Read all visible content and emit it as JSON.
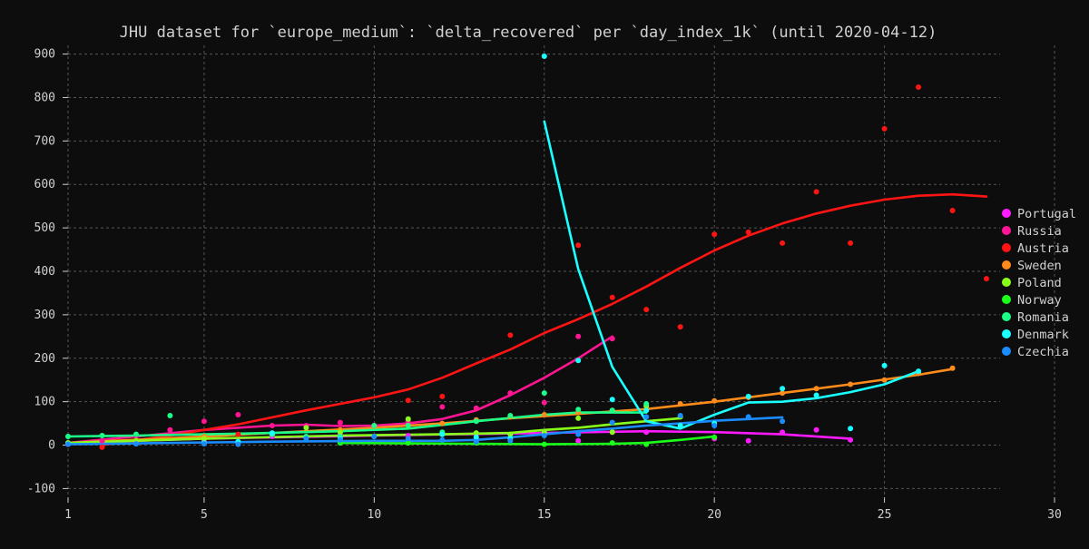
{
  "chart_data": {
    "type": "scatter",
    "title": "JHU dataset for `europe_medium`: `delta_recovered` per `day_index_1k` (until 2020-04-12)",
    "xlabel": "",
    "ylabel": "",
    "xlim": [
      1,
      30
    ],
    "ylim": [
      -120,
      920
    ],
    "x_ticks": [
      1,
      5,
      10,
      15,
      20,
      25,
      30
    ],
    "y_ticks": [
      -100,
      0,
      100,
      200,
      300,
      400,
      500,
      600,
      700,
      800,
      900
    ],
    "grid": true,
    "legend_position": "right",
    "series": [
      {
        "name": "Portugal",
        "color": "#ff1aff",
        "points": [
          [
            1,
            2
          ],
          [
            3,
            5
          ],
          [
            5,
            8
          ],
          [
            7,
            20
          ],
          [
            9,
            25
          ],
          [
            11,
            22
          ],
          [
            13,
            25
          ],
          [
            15,
            30
          ],
          [
            16,
            10
          ],
          [
            17,
            30
          ],
          [
            18,
            30
          ],
          [
            20,
            15
          ],
          [
            21,
            10
          ],
          [
            22,
            30
          ],
          [
            23,
            35
          ],
          [
            24,
            12
          ]
        ],
        "trend": [
          [
            1,
            5
          ],
          [
            5,
            15
          ],
          [
            10,
            22
          ],
          [
            15,
            28
          ],
          [
            18,
            32
          ],
          [
            20,
            30
          ],
          [
            22,
            25
          ],
          [
            24,
            15
          ]
        ]
      },
      {
        "name": "Russia",
        "color": "#ff1493",
        "points": [
          [
            1,
            5
          ],
          [
            2,
            10
          ],
          [
            3,
            20
          ],
          [
            4,
            35
          ],
          [
            5,
            55
          ],
          [
            6,
            70
          ],
          [
            7,
            45
          ],
          [
            8,
            45
          ],
          [
            9,
            52
          ],
          [
            10,
            45
          ],
          [
            11,
            55
          ],
          [
            12,
            88
          ],
          [
            13,
            85
          ],
          [
            14,
            120
          ],
          [
            15,
            98
          ],
          [
            16,
            250
          ],
          [
            17,
            245
          ]
        ],
        "trend": [
          [
            1,
            5
          ],
          [
            3,
            20
          ],
          [
            5,
            35
          ],
          [
            7,
            45
          ],
          [
            8,
            47
          ],
          [
            9,
            44
          ],
          [
            10,
            45
          ],
          [
            11,
            50
          ],
          [
            12,
            60
          ],
          [
            13,
            80
          ],
          [
            14,
            115
          ],
          [
            15,
            155
          ],
          [
            16,
            200
          ],
          [
            17,
            250
          ]
        ]
      },
      {
        "name": "Austria",
        "color": "#ff1414",
        "points": [
          [
            2,
            -5
          ],
          [
            6,
            25
          ],
          [
            11,
            103
          ],
          [
            12,
            112
          ],
          [
            14,
            253
          ],
          [
            16,
            460
          ],
          [
            17,
            340
          ],
          [
            18,
            312
          ],
          [
            19,
            272
          ],
          [
            20,
            485
          ],
          [
            21,
            490
          ],
          [
            22,
            465
          ],
          [
            23,
            583
          ],
          [
            24,
            465
          ],
          [
            25,
            728
          ],
          [
            26,
            824
          ],
          [
            27,
            540
          ],
          [
            28,
            383
          ]
        ],
        "trend": [
          [
            2,
            0
          ],
          [
            4,
            22
          ],
          [
            6,
            48
          ],
          [
            8,
            80
          ],
          [
            10,
            110
          ],
          [
            11,
            128
          ],
          [
            12,
            155
          ],
          [
            13,
            188
          ],
          [
            14,
            220
          ],
          [
            15,
            258
          ],
          [
            16,
            290
          ],
          [
            17,
            325
          ],
          [
            18,
            365
          ],
          [
            19,
            408
          ],
          [
            20,
            448
          ],
          [
            21,
            482
          ],
          [
            22,
            510
          ],
          [
            23,
            533
          ],
          [
            24,
            551
          ],
          [
            25,
            565
          ],
          [
            26,
            574
          ],
          [
            27,
            577
          ],
          [
            28,
            572
          ]
        ]
      },
      {
        "name": "Sweden",
        "color": "#ff8c1a",
        "points": [
          [
            1,
            5
          ],
          [
            3,
            10
          ],
          [
            5,
            20
          ],
          [
            7,
            25
          ],
          [
            9,
            35
          ],
          [
            11,
            45
          ],
          [
            12,
            50
          ],
          [
            13,
            58
          ],
          [
            14,
            65
          ],
          [
            15,
            70
          ],
          [
            16,
            75
          ],
          [
            17,
            80
          ],
          [
            18,
            90
          ],
          [
            19,
            95
          ],
          [
            20,
            102
          ],
          [
            21,
            110
          ],
          [
            22,
            120
          ],
          [
            23,
            130
          ],
          [
            24,
            140
          ],
          [
            25,
            150
          ],
          [
            26,
            165
          ],
          [
            27,
            177
          ]
        ],
        "trend": [
          [
            1,
            5
          ],
          [
            5,
            20
          ],
          [
            10,
            40
          ],
          [
            12,
            50
          ],
          [
            14,
            62
          ],
          [
            16,
            72
          ],
          [
            18,
            83
          ],
          [
            20,
            100
          ],
          [
            22,
            120
          ],
          [
            24,
            140
          ],
          [
            26,
            162
          ],
          [
            27,
            175
          ]
        ]
      },
      {
        "name": "Poland",
        "color": "#88ff1a",
        "points": [
          [
            1,
            5
          ],
          [
            3,
            10
          ],
          [
            5,
            15
          ],
          [
            7,
            25
          ],
          [
            8,
            40
          ],
          [
            9,
            30
          ],
          [
            11,
            60
          ],
          [
            12,
            25
          ],
          [
            13,
            28
          ],
          [
            14,
            25
          ],
          [
            15,
            30
          ],
          [
            16,
            62
          ],
          [
            17,
            30
          ],
          [
            18,
            90
          ],
          [
            19,
            65
          ]
        ],
        "trend": [
          [
            1,
            5
          ],
          [
            5,
            15
          ],
          [
            9,
            22
          ],
          [
            12,
            25
          ],
          [
            14,
            28
          ],
          [
            15,
            35
          ],
          [
            16,
            40
          ],
          [
            17,
            48
          ],
          [
            18,
            55
          ],
          [
            19,
            62
          ]
        ]
      },
      {
        "name": "Norway",
        "color": "#1aff1a",
        "points": [
          [
            9,
            5
          ],
          [
            11,
            5
          ],
          [
            13,
            5
          ],
          [
            15,
            2
          ],
          [
            17,
            5
          ],
          [
            18,
            2
          ],
          [
            20,
            18
          ]
        ],
        "trend": [
          [
            9,
            5
          ],
          [
            11,
            4
          ],
          [
            13,
            3
          ],
          [
            15,
            2
          ],
          [
            17,
            3
          ],
          [
            18,
            5
          ],
          [
            19,
            12
          ],
          [
            20,
            20
          ]
        ]
      },
      {
        "name": "Romania",
        "color": "#1aff88",
        "points": [
          [
            1,
            20
          ],
          [
            2,
            22
          ],
          [
            3,
            25
          ],
          [
            4,
            68
          ],
          [
            7,
            25
          ],
          [
            8,
            20
          ],
          [
            9,
            20
          ],
          [
            10,
            45
          ],
          [
            11,
            45
          ],
          [
            12,
            30
          ],
          [
            13,
            55
          ],
          [
            14,
            68
          ],
          [
            15,
            120
          ],
          [
            16,
            82
          ],
          [
            17,
            80
          ],
          [
            18,
            95
          ]
        ],
        "trend": [
          [
            1,
            20
          ],
          [
            3,
            22
          ],
          [
            5,
            25
          ],
          [
            7,
            28
          ],
          [
            9,
            32
          ],
          [
            11,
            38
          ],
          [
            13,
            55
          ],
          [
            15,
            70
          ],
          [
            16,
            75
          ],
          [
            17,
            75
          ],
          [
            18,
            75
          ]
        ]
      },
      {
        "name": "Denmark",
        "color": "#1affff",
        "points": [
          [
            1,
            3
          ],
          [
            5,
            5
          ],
          [
            6,
            8
          ],
          [
            7,
            28
          ],
          [
            9,
            15
          ],
          [
            10,
            20
          ],
          [
            12,
            25
          ],
          [
            13,
            18
          ],
          [
            14,
            15
          ],
          [
            15,
            895
          ],
          [
            16,
            195
          ],
          [
            17,
            105
          ],
          [
            18,
            80
          ],
          [
            19,
            45
          ],
          [
            20,
            50
          ],
          [
            21,
            112
          ],
          [
            22,
            130
          ],
          [
            23,
            115
          ],
          [
            24,
            38
          ],
          [
            25,
            183
          ],
          [
            26,
            170
          ]
        ],
        "trend": [
          [
            15,
            745
          ],
          [
            16,
            405
          ],
          [
            17,
            180
          ],
          [
            18,
            55
          ],
          [
            19,
            38
          ],
          [
            20,
            70
          ],
          [
            21,
            98
          ],
          [
            22,
            100
          ],
          [
            23,
            108
          ],
          [
            24,
            122
          ],
          [
            25,
            140
          ],
          [
            26,
            170
          ]
        ]
      },
      {
        "name": "Czechia",
        "color": "#1a8cff",
        "points": [
          [
            1,
            2
          ],
          [
            3,
            3
          ],
          [
            5,
            3
          ],
          [
            6,
            2
          ],
          [
            8,
            15
          ],
          [
            9,
            12
          ],
          [
            10,
            20
          ],
          [
            11,
            15
          ],
          [
            12,
            12
          ],
          [
            13,
            8
          ],
          [
            14,
            10
          ],
          [
            15,
            22
          ],
          [
            16,
            25
          ],
          [
            17,
            52
          ],
          [
            18,
            65
          ],
          [
            19,
            68
          ],
          [
            20,
            45
          ],
          [
            21,
            65
          ],
          [
            22,
            55
          ]
        ],
        "trend": [
          [
            1,
            2
          ],
          [
            4,
            5
          ],
          [
            7,
            8
          ],
          [
            10,
            10
          ],
          [
            12,
            10
          ],
          [
            13,
            12
          ],
          [
            14,
            18
          ],
          [
            15,
            25
          ],
          [
            16,
            32
          ],
          [
            17,
            38
          ],
          [
            18,
            45
          ],
          [
            19,
            50
          ],
          [
            20,
            56
          ],
          [
            21,
            60
          ],
          [
            22,
            64
          ]
        ]
      }
    ]
  }
}
